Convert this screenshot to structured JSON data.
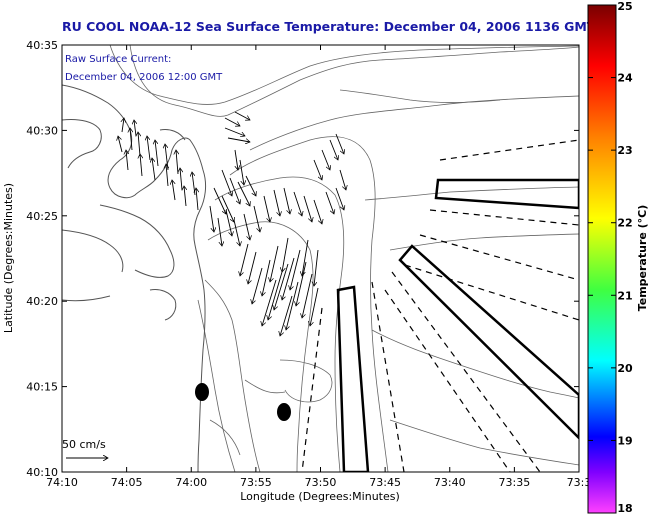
{
  "title": "RU COOL  NOAA-12  Sea Surface Temperature:  December 04, 2006 1136 GMT",
  "annotation": {
    "line1": "Raw Surface Current:",
    "line2": "December 04, 2006 12:00 GMT"
  },
  "axes": {
    "xlabel": "Longitude (Degrees:Minutes)",
    "ylabel": "Latitude (Degrees:Minutes)",
    "xticks": [
      "74:10",
      "74:05",
      "74:00",
      "73:55",
      "73:50",
      "73:45",
      "73:40",
      "73:35",
      "73:3"
    ],
    "yticks": [
      "40:35",
      "40:30",
      "40:25",
      "40:20",
      "40:15",
      "40:10"
    ]
  },
  "scale_vector": {
    "label": "50 cm/s"
  },
  "colorbar": {
    "label": "Temperature (°C)",
    "ticks": [
      "25",
      "24",
      "23",
      "22",
      "21",
      "20",
      "19",
      "18"
    ],
    "colors": [
      "#c00000",
      "#ff0000",
      "#ff8000",
      "#ffff00",
      "#40ff00",
      "#00ffff",
      "#0000ff",
      "#ff00ff"
    ]
  }
}
